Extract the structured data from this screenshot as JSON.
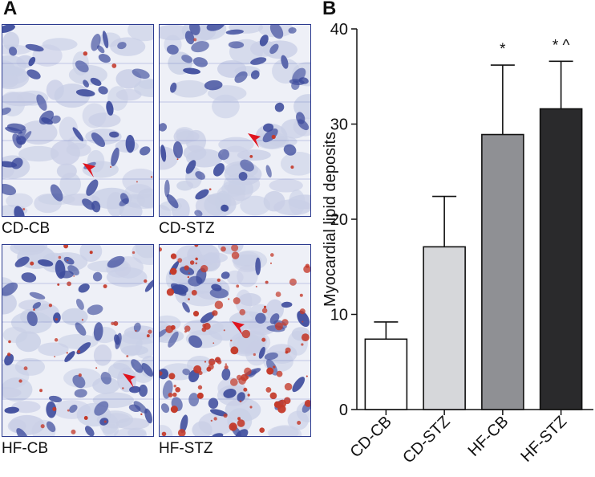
{
  "panels": {
    "a_label": "A",
    "b_label": "B"
  },
  "micrographs": [
    {
      "label": "CD-CB",
      "stain_level": "low"
    },
    {
      "label": "CD-STZ",
      "stain_level": "low"
    },
    {
      "label": "HF-CB",
      "stain_level": "medium"
    },
    {
      "label": "HF-STZ",
      "stain_level": "high"
    }
  ],
  "colors": {
    "nuclei": "#3d4b9c",
    "tissue": "#c9cfe6",
    "lipid": "#c43a2a",
    "arrow": "#e0141e",
    "frame": "#2b3a8f"
  },
  "chart_data": {
    "type": "bar",
    "categories": [
      "CD-CB",
      "CD-STZ",
      "HF-CB",
      "HF-STZ"
    ],
    "values": [
      7.4,
      17.1,
      28.9,
      31.6
    ],
    "errors": [
      1.8,
      5.3,
      7.3,
      5.0
    ],
    "annotations": [
      "",
      "",
      "*",
      "* ^"
    ],
    "bar_colors": [
      "#ffffff",
      "#d6d7da",
      "#8f9094",
      "#2a2a2c"
    ],
    "ylabel": "Myocardial lipid deposits",
    "xlabel": "",
    "title": "",
    "ylim": [
      0,
      40
    ],
    "yticks": [
      0,
      10,
      20,
      30,
      40
    ],
    "grid": false
  }
}
